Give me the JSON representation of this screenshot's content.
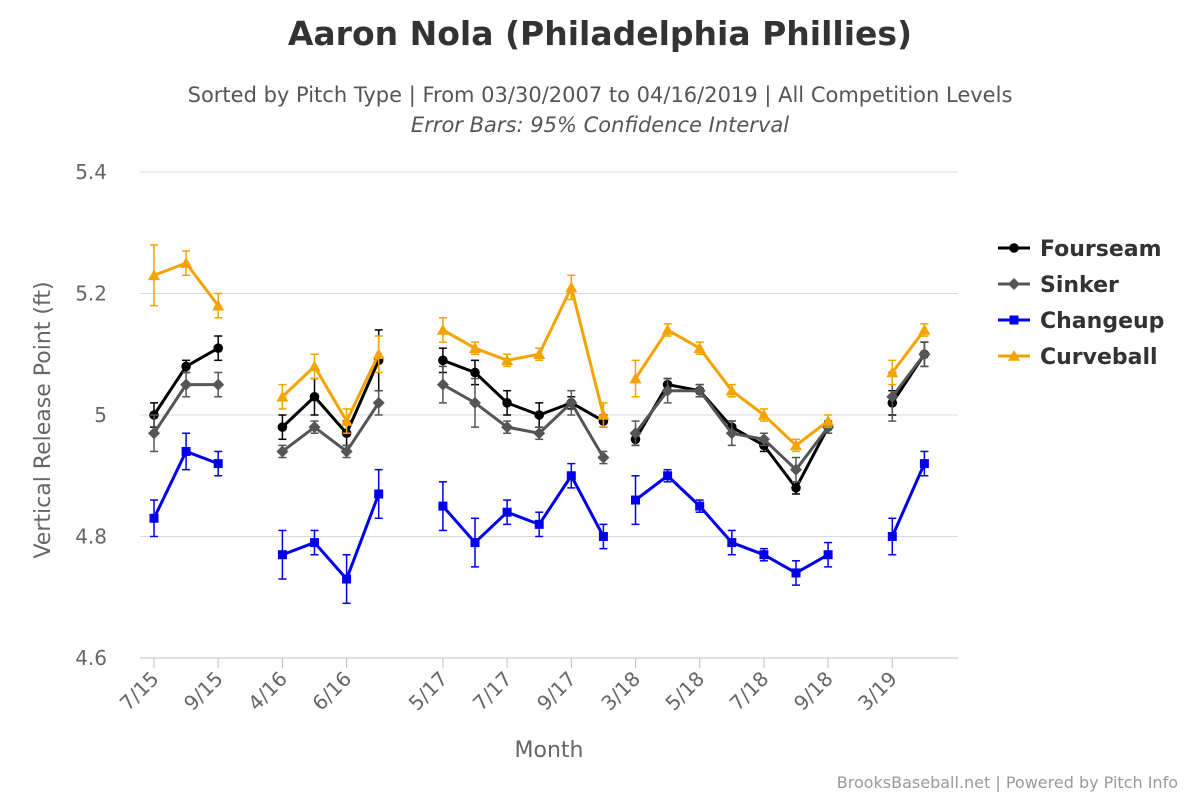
{
  "header": {
    "title": "Aaron Nola (Philadelphia Phillies)",
    "subtitle": "Sorted by Pitch Type | From 03/30/2007 to 04/16/2019 | All Competition Levels",
    "subtitle2": "Error Bars: 95% Confidence Interval"
  },
  "footer": {
    "credit": "BrooksBaseball.net | Powered by Pitch Info"
  },
  "chart_data": {
    "type": "line",
    "title": "Aaron Nola (Philadelphia Phillies)",
    "xlabel": "Month",
    "ylabel": "Vertical Release Point (ft)",
    "ylim": [
      4.6,
      5.4
    ],
    "yticks": [
      "4.6",
      "4.8",
      "5",
      "5.2",
      "5.4"
    ],
    "grid": true,
    "legend_position": "right",
    "x_tick_labels": [
      {
        "label": "7/15",
        "index": 0
      },
      {
        "label": "9/15",
        "index": 2
      },
      {
        "label": "4/16",
        "index": 4
      },
      {
        "label": "6/16",
        "index": 6
      },
      {
        "label": "5/17",
        "index": 9
      },
      {
        "label": "7/17",
        "index": 11
      },
      {
        "label": "9/17",
        "index": 13
      },
      {
        "label": "3/18",
        "index": 15
      },
      {
        "label": "5/18",
        "index": 17
      },
      {
        "label": "7/18",
        "index": 19
      },
      {
        "label": "9/18",
        "index": 21
      },
      {
        "label": "3/19",
        "index": 23
      }
    ],
    "x_slots": 26,
    "series": [
      {
        "name": "Fourseam",
        "color": "#000000",
        "marker": "circle",
        "segments": [
          [
            [
              0,
              5.0,
              0.02
            ],
            [
              1,
              5.08,
              0.01
            ],
            [
              2,
              5.11,
              0.02
            ]
          ],
          [
            [
              4,
              4.98,
              0.02
            ],
            [
              5,
              5.03,
              0.03
            ],
            [
              6,
              4.97,
              0.02
            ],
            [
              7,
              5.09,
              0.05
            ]
          ],
          [
            [
              9,
              5.09,
              0.02
            ],
            [
              10,
              5.07,
              0.02
            ],
            [
              11,
              5.02,
              0.02
            ],
            [
              12,
              5.0,
              0.02
            ],
            [
              13,
              5.02,
              0.01
            ],
            [
              14,
              4.99,
              0.01
            ]
          ],
          [
            [
              15,
              4.96,
              0.01
            ],
            [
              16,
              5.05,
              0.01
            ],
            [
              17,
              5.04,
              0.01
            ],
            [
              18,
              4.98,
              0.01
            ],
            [
              19,
              4.95,
              0.01
            ],
            [
              20,
              4.88,
              0.01
            ],
            [
              21,
              4.98,
              0.01
            ]
          ],
          [
            [
              23,
              5.02,
              0.02
            ],
            [
              24,
              5.1,
              0.02
            ]
          ]
        ]
      },
      {
        "name": "Sinker",
        "color": "#555555",
        "marker": "diamond",
        "segments": [
          [
            [
              0,
              4.97,
              0.03
            ],
            [
              1,
              5.05,
              0.02
            ],
            [
              2,
              5.05,
              0.02
            ]
          ],
          [
            [
              4,
              4.94,
              0.01
            ],
            [
              5,
              4.98,
              0.01
            ],
            [
              6,
              4.94,
              0.01
            ],
            [
              7,
              5.02,
              0.02
            ]
          ],
          [
            [
              9,
              5.05,
              0.03
            ],
            [
              10,
              5.02,
              0.04
            ],
            [
              11,
              4.98,
              0.01
            ],
            [
              12,
              4.97,
              0.01
            ],
            [
              13,
              5.02,
              0.02
            ],
            [
              14,
              4.93,
              0.01
            ]
          ],
          [
            [
              15,
              4.97,
              0.02
            ],
            [
              16,
              5.04,
              0.02
            ],
            [
              17,
              5.04,
              0.01
            ],
            [
              18,
              4.97,
              0.02
            ],
            [
              19,
              4.96,
              0.01
            ],
            [
              20,
              4.91,
              0.02
            ],
            [
              21,
              4.98,
              0.01
            ]
          ],
          [
            [
              23,
              5.03,
              0.04
            ],
            [
              24,
              5.1,
              0.02
            ]
          ]
        ]
      },
      {
        "name": "Changeup",
        "color": "#0000ee",
        "marker": "square",
        "segments": [
          [
            [
              0,
              4.83,
              0.03
            ],
            [
              1,
              4.94,
              0.03
            ],
            [
              2,
              4.92,
              0.02
            ]
          ],
          [
            [
              4,
              4.77,
              0.04
            ],
            [
              5,
              4.79,
              0.02
            ],
            [
              6,
              4.73,
              0.04
            ],
            [
              7,
              4.87,
              0.04
            ]
          ],
          [
            [
              9,
              4.85,
              0.04
            ],
            [
              10,
              4.79,
              0.04
            ],
            [
              11,
              4.84,
              0.02
            ],
            [
              12,
              4.82,
              0.02
            ],
            [
              13,
              4.9,
              0.02
            ],
            [
              14,
              4.8,
              0.02
            ]
          ],
          [
            [
              15,
              4.86,
              0.04
            ],
            [
              16,
              4.9,
              0.01
            ],
            [
              17,
              4.85,
              0.01
            ],
            [
              18,
              4.79,
              0.02
            ],
            [
              19,
              4.77,
              0.01
            ],
            [
              20,
              4.74,
              0.02
            ],
            [
              21,
              4.77,
              0.02
            ]
          ],
          [
            [
              23,
              4.8,
              0.03
            ],
            [
              24,
              4.92,
              0.02
            ]
          ]
        ]
      },
      {
        "name": "Curveball",
        "color": "#f5a300",
        "marker": "triangle",
        "segments": [
          [
            [
              0,
              5.23,
              0.05
            ],
            [
              1,
              5.25,
              0.02
            ],
            [
              2,
              5.18,
              0.02
            ]
          ],
          [
            [
              4,
              5.03,
              0.02
            ],
            [
              5,
              5.08,
              0.02
            ],
            [
              6,
              4.99,
              0.02
            ],
            [
              7,
              5.1,
              0.03
            ]
          ],
          [
            [
              9,
              5.14,
              0.02
            ],
            [
              10,
              5.11,
              0.01
            ],
            [
              11,
              5.09,
              0.01
            ],
            [
              12,
              5.1,
              0.01
            ],
            [
              13,
              5.21,
              0.02
            ],
            [
              14,
              5.0,
              0.02
            ]
          ],
          [
            [
              15,
              5.06,
              0.03
            ],
            [
              16,
              5.14,
              0.01
            ],
            [
              17,
              5.11,
              0.01
            ],
            [
              18,
              5.04,
              0.01
            ],
            [
              19,
              5.0,
              0.01
            ],
            [
              20,
              4.95,
              0.01
            ],
            [
              21,
              4.99,
              0.01
            ]
          ],
          [
            [
              23,
              5.07,
              0.02
            ],
            [
              24,
              5.14,
              0.01
            ]
          ]
        ]
      }
    ]
  }
}
